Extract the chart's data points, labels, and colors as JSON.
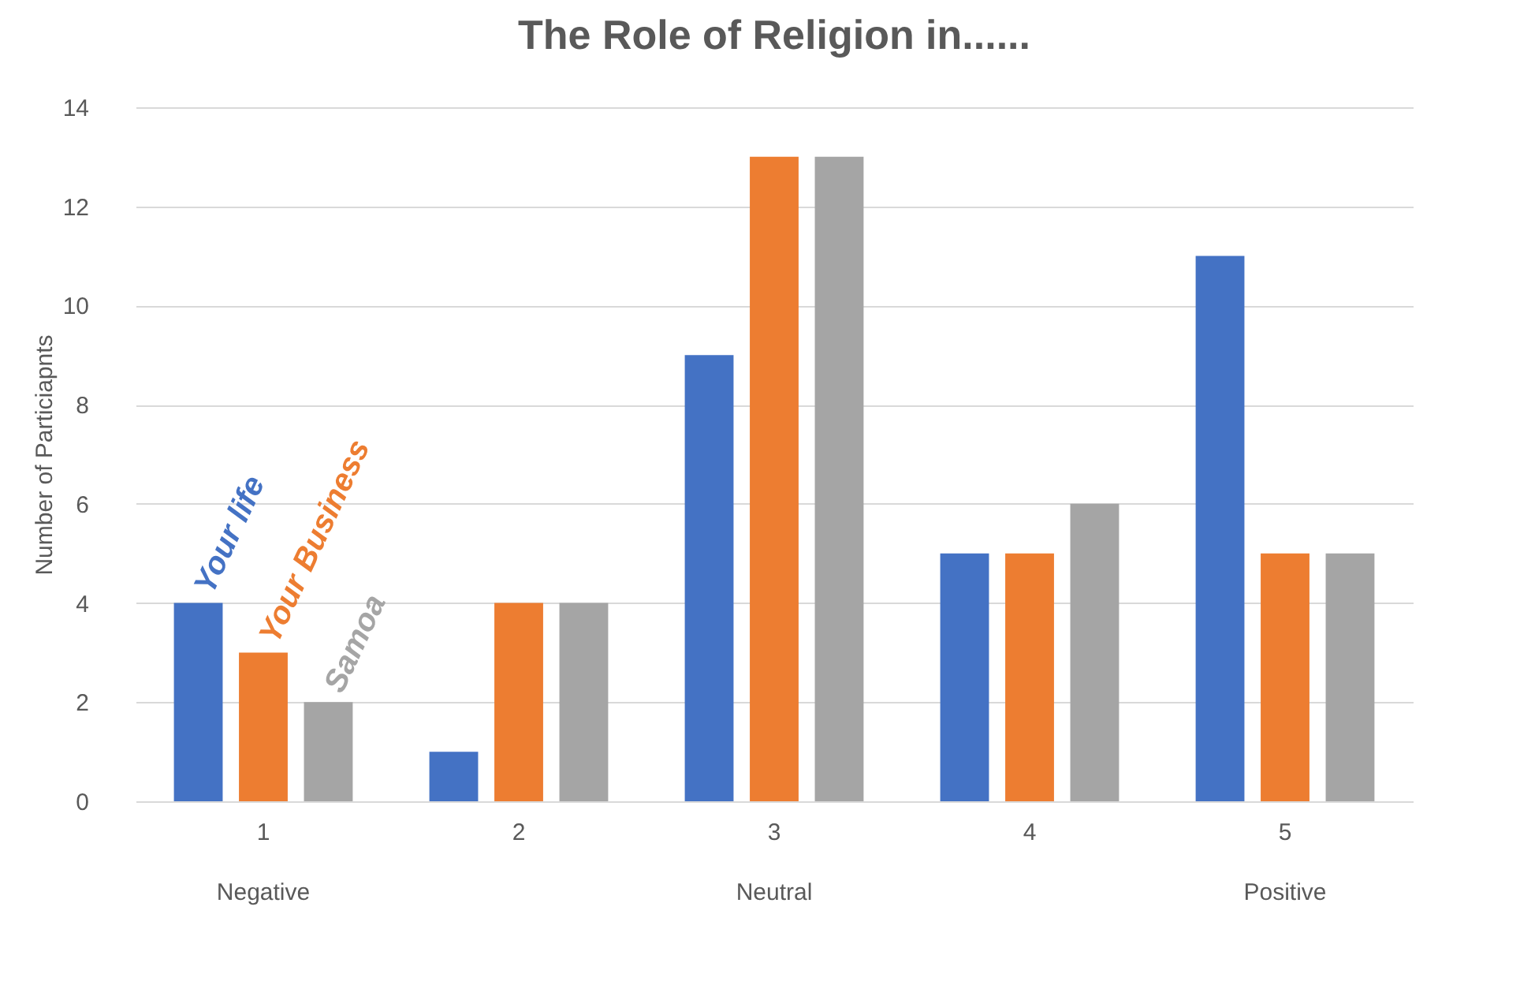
{
  "chart_data": {
    "type": "bar",
    "title": "The Role of Religion in......",
    "ylabel": "Number of Particiapnts",
    "categories": [
      "1\nNegative",
      "2",
      "3\nNeutral",
      "4",
      "5\nPositive"
    ],
    "series": [
      {
        "name": "Your life",
        "color": "#4472c4",
        "values": [
          4,
          1,
          9,
          5,
          11
        ]
      },
      {
        "name": "Your Business",
        "color": "#ed7d31",
        "values": [
          3,
          4,
          13,
          5,
          5
        ]
      },
      {
        "name": "Samoa",
        "color": "#a5a5a5",
        "values": [
          2,
          4,
          13,
          6,
          5
        ]
      }
    ],
    "ylim": [
      0,
      14
    ],
    "yticks": [
      0,
      2,
      4,
      6,
      8,
      10,
      12,
      14
    ],
    "grid": "y",
    "legend": false
  }
}
